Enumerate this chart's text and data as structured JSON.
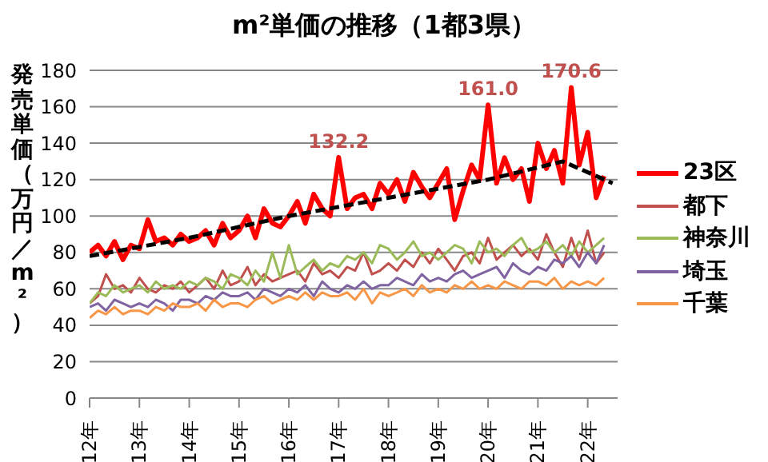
{
  "chart_data": {
    "type": "line",
    "title": "m²単価の推移（1都3県）",
    "ylabel": "発売単価（万円／m²）",
    "x": [
      12,
      12.17,
      12.33,
      12.5,
      12.67,
      12.83,
      13,
      13.17,
      13.33,
      13.5,
      13.67,
      13.83,
      14,
      14.17,
      14.33,
      14.5,
      14.67,
      14.83,
      15,
      15.17,
      15.33,
      15.5,
      15.67,
      15.83,
      16,
      16.17,
      16.33,
      16.5,
      16.67,
      16.83,
      17,
      17.17,
      17.33,
      17.5,
      17.67,
      17.83,
      18,
      18.17,
      18.33,
      18.5,
      18.67,
      18.83,
      19,
      19.17,
      19.33,
      19.5,
      19.67,
      19.83,
      20,
      20.17,
      20.33,
      20.5,
      20.67,
      20.83,
      21,
      21.17,
      21.33,
      21.5,
      21.67,
      21.83,
      22,
      22.17,
      22.33
    ],
    "series": [
      {
        "name": "23区",
        "color": "#ff0000",
        "values": [
          80,
          84,
          78,
          86,
          76,
          84,
          82,
          98,
          86,
          88,
          84,
          90,
          86,
          88,
          92,
          84,
          96,
          88,
          92,
          100,
          88,
          104,
          96,
          94,
          100,
          108,
          96,
          112,
          104,
          100,
          132.2,
          104,
          110,
          112,
          104,
          118,
          112,
          120,
          108,
          124,
          116,
          110,
          118,
          126,
          98,
          114,
          128,
          120,
          161.0,
          118,
          132,
          120,
          126,
          108,
          140,
          126,
          136,
          118,
          170.6,
          128,
          146,
          110,
          122
        ]
      },
      {
        "name": "都下",
        "color": "#c0504d",
        "values": [
          52,
          56,
          68,
          60,
          62,
          58,
          66,
          60,
          58,
          62,
          60,
          64,
          58,
          62,
          66,
          60,
          70,
          62,
          64,
          72,
          62,
          68,
          64,
          66,
          68,
          70,
          64,
          74,
          68,
          70,
          66,
          72,
          70,
          80,
          68,
          70,
          74,
          70,
          76,
          72,
          80,
          74,
          82,
          76,
          70,
          78,
          80,
          74,
          88,
          76,
          80,
          84,
          78,
          82,
          76,
          90,
          80,
          72,
          88,
          76,
          92,
          74,
          80
        ]
      },
      {
        "name": "神奈川",
        "color": "#9bbb59",
        "values": [
          52,
          58,
          56,
          62,
          58,
          60,
          62,
          58,
          64,
          60,
          62,
          60,
          64,
          62,
          66,
          64,
          60,
          68,
          66,
          62,
          70,
          64,
          80,
          66,
          84,
          68,
          72,
          76,
          70,
          74,
          72,
          78,
          76,
          80,
          74,
          84,
          82,
          76,
          80,
          86,
          78,
          80,
          76,
          80,
          84,
          82,
          74,
          86,
          80,
          82,
          78,
          84,
          88,
          80,
          82,
          86,
          80,
          84,
          78,
          86,
          80,
          84,
          88
        ]
      },
      {
        "name": "埼玉",
        "color": "#8064a2",
        "values": [
          50,
          52,
          48,
          54,
          52,
          50,
          52,
          50,
          54,
          52,
          48,
          54,
          54,
          52,
          56,
          54,
          58,
          56,
          56,
          58,
          54,
          60,
          58,
          56,
          60,
          58,
          62,
          56,
          64,
          60,
          58,
          62,
          60,
          64,
          60,
          62,
          62,
          66,
          64,
          62,
          68,
          64,
          66,
          64,
          68,
          70,
          66,
          68,
          70,
          72,
          66,
          74,
          70,
          68,
          72,
          70,
          76,
          74,
          78,
          72,
          80,
          74,
          84
        ]
      },
      {
        "name": "千葉",
        "color": "#f79646",
        "values": [
          44,
          48,
          46,
          50,
          46,
          48,
          48,
          46,
          50,
          48,
          52,
          50,
          50,
          52,
          48,
          54,
          50,
          52,
          52,
          50,
          54,
          56,
          52,
          54,
          56,
          54,
          58,
          54,
          58,
          56,
          56,
          58,
          54,
          60,
          52,
          58,
          56,
          58,
          60,
          56,
          62,
          58,
          60,
          58,
          62,
          60,
          64,
          60,
          62,
          60,
          64,
          62,
          60,
          64,
          64,
          62,
          66,
          60,
          64,
          62,
          64,
          62,
          66
        ]
      },
      {
        "type": "line",
        "color": "#000000",
        "line_style": "dashed",
        "x": [
          12,
          14,
          16,
          18,
          20,
          21.5,
          22.5
        ],
        "values": [
          78,
          88,
          100,
          110,
          120,
          130,
          118
        ]
      }
    ],
    "annotations": [
      {
        "text": "132.2",
        "x": 17,
        "y": 132.2
      },
      {
        "text": "161.0",
        "x": 20,
        "y": 161.0
      },
      {
        "text": "170.6",
        "x": 21.67,
        "y": 170.6
      }
    ],
    "xlim": [
      12,
      22.6
    ],
    "xticks": [
      {
        "value": 12,
        "label": "12年"
      },
      {
        "value": 13,
        "label": "13年"
      },
      {
        "value": 14,
        "label": "14年"
      },
      {
        "value": 15,
        "label": "15年"
      },
      {
        "value": 16,
        "label": "16年"
      },
      {
        "value": 17,
        "label": "17年"
      },
      {
        "value": 18,
        "label": "18年"
      },
      {
        "value": 19,
        "label": "19年"
      },
      {
        "value": 20,
        "label": "20年"
      },
      {
        "value": 21,
        "label": "21年"
      },
      {
        "value": 22,
        "label": "22年"
      }
    ],
    "ylim": [
      0,
      180
    ],
    "yticks": [
      0,
      20,
      40,
      60,
      80,
      100,
      120,
      140,
      160,
      180
    ],
    "grid": "y",
    "legend": "right"
  }
}
